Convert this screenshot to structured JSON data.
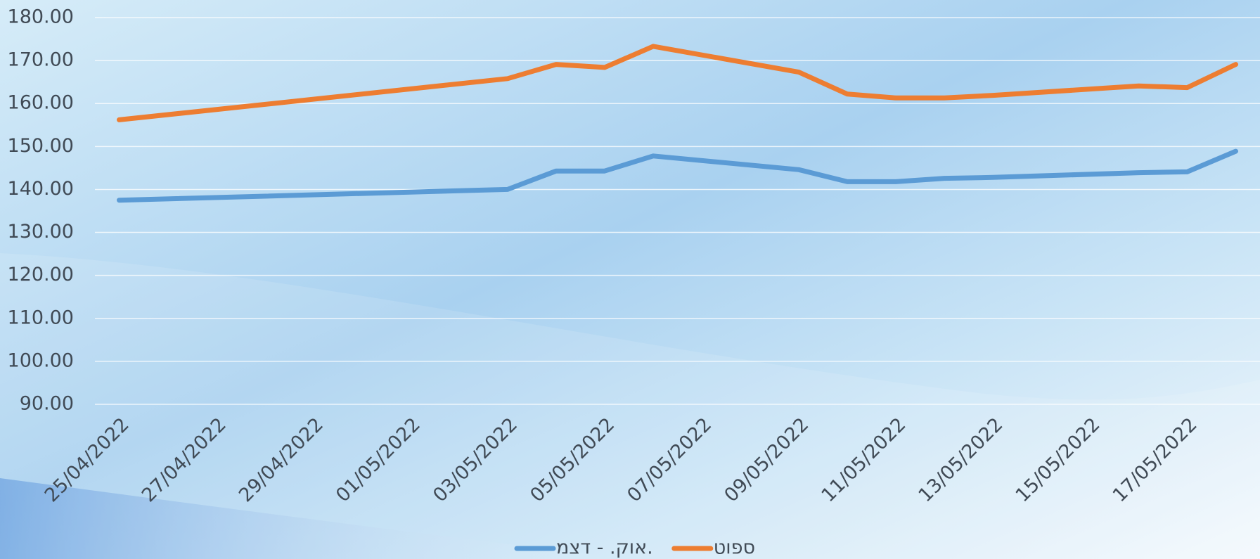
{
  "chart_data": {
    "type": "line",
    "x": [
      "25/04/2022",
      "03/05/2022",
      "04/05/2022",
      "05/05/2022",
      "06/05/2022",
      "09/05/2022",
      "10/05/2022",
      "11/05/2022",
      "12/05/2022",
      "13/05/2022",
      "16/05/2022",
      "17/05/2022",
      "18/05/2022"
    ],
    "series": [
      {
        "name": "אוק. - דצמ.",
        "color": "#5b9bd5",
        "values": [
          137.5,
          140.0,
          144.3,
          144.3,
          147.8,
          144.6,
          141.8,
          141.8,
          142.6,
          142.8,
          143.9,
          144.1,
          148.9
        ]
      },
      {
        "name": "ספוט",
        "color": "#ed7d31",
        "values": [
          156.2,
          165.8,
          169.1,
          168.4,
          173.3,
          167.3,
          162.2,
          161.3,
          161.3,
          161.9,
          164.1,
          163.7,
          169.1
        ]
      }
    ],
    "xlim": [
      "25/04/2022",
      "18/05/2022"
    ],
    "xticks": [
      "25/04/2022",
      "27/04/2022",
      "29/04/2022",
      "01/05/2022",
      "03/05/2022",
      "05/05/2022",
      "07/05/2022",
      "09/05/2022",
      "11/05/2022",
      "13/05/2022",
      "15/05/2022",
      "17/05/2022"
    ],
    "ylim": [
      90,
      180
    ],
    "yticks": [
      {
        "value": 90,
        "label": "90.00"
      },
      {
        "value": 100,
        "label": "100.00"
      },
      {
        "value": 110,
        "label": "110.00"
      },
      {
        "value": 120,
        "label": "120.00"
      },
      {
        "value": 130,
        "label": "130.00"
      },
      {
        "value": 140,
        "label": "140.00"
      },
      {
        "value": 150,
        "label": "150.00"
      },
      {
        "value": 160,
        "label": "160.00"
      },
      {
        "value": 170,
        "label": "170.00"
      },
      {
        "value": 180,
        "label": "180.00"
      }
    ],
    "grid": true,
    "legend": "bottom"
  }
}
